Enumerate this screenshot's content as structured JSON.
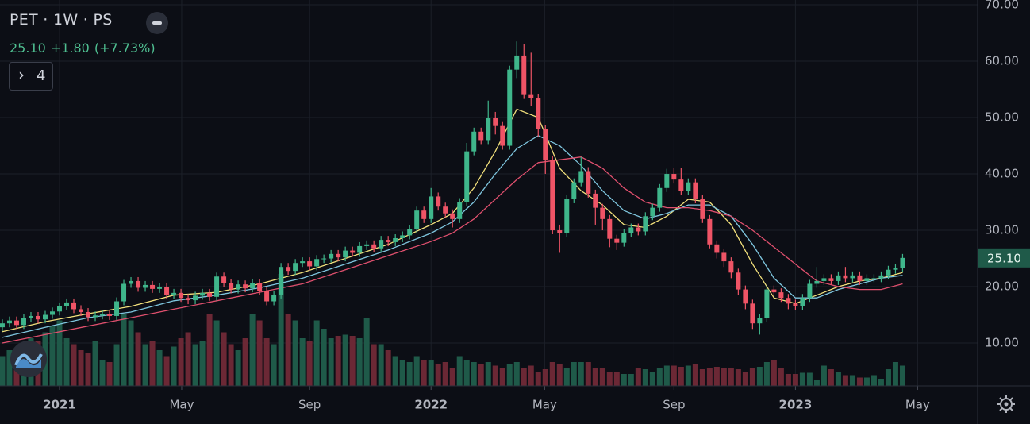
{
  "chart_data": {
    "type": "candlestick",
    "title": "PET · 1W · PS",
    "price": "25.10",
    "change": "+1.80",
    "change_percent": "(+7.73%)",
    "indicator_count": "4",
    "last_price_label": "25.10",
    "up_color": "#3fb68b",
    "down_color": "#ef5466",
    "volume_up_color": "#1f5a49",
    "volume_down_color": "#6b2835",
    "ylim": [
      2.4,
      70.85
    ],
    "yticks": [
      {
        "value": 10,
        "label": "10.00"
      },
      {
        "value": 20,
        "label": "20.00"
      },
      {
        "value": 30,
        "label": "30.00"
      },
      {
        "value": 40,
        "label": "40.00"
      },
      {
        "value": 50,
        "label": "50.00"
      },
      {
        "value": 60,
        "label": "60.00"
      },
      {
        "value": 70,
        "label": "70.00"
      }
    ],
    "xlim": [
      -0.33,
      136.5
    ],
    "xticks": [
      {
        "value": 8,
        "label": "2021"
      },
      {
        "value": 25.1,
        "label": "May"
      },
      {
        "value": 43,
        "label": "Sep"
      },
      {
        "value": 60,
        "label": "2022"
      },
      {
        "value": 75.9,
        "label": "May"
      },
      {
        "value": 94,
        "label": "Sep"
      },
      {
        "value": 111,
        "label": "2023"
      },
      {
        "value": 128.1,
        "label": "May"
      }
    ],
    "vlim": [
      0,
      100
    ],
    "grid": true,
    "open": [
      12.8,
      13.5,
      14.0,
      13.2,
      14.5,
      14.8,
      14.2,
      15.0,
      15.6,
      16.5,
      17.2,
      16.0,
      15.5,
      14.6,
      14.9,
      15.2,
      14.8,
      17.4,
      20.5,
      21.0,
      19.8,
      20.3,
      19.6,
      19.9,
      18.5,
      18.9,
      18.0,
      17.6,
      18.4,
      18.9,
      18.2,
      21.8,
      20.6,
      19.5,
      20.4,
      19.7,
      20.6,
      19.3,
      17.4,
      18.6,
      23.5,
      22.8,
      24.2,
      24.5,
      23.6,
      24.9,
      25.0,
      25.8,
      25.2,
      26.4,
      26.0,
      27.2,
      27.5,
      26.8,
      28.3,
      27.9,
      28.6,
      29.1,
      30.2,
      33.5,
      32.0,
      36.0,
      34.2,
      33.0,
      32.0,
      35.0,
      44.0,
      47.5,
      46.0,
      50.0,
      48.5,
      45.0,
      58.5,
      61.0,
      54.0,
      53.5,
      48.0,
      42.5,
      30.0,
      29.5,
      35.5,
      38.5,
      40.5,
      36.5,
      34.0,
      32.0,
      28.5,
      27.8,
      29.5,
      30.5,
      29.8,
      32.5,
      34.0,
      37.5,
      40.0,
      39.0,
      37.0,
      38.5,
      35.5,
      32.0,
      27.5,
      26.0,
      24.5,
      22.5,
      19.5,
      17.0,
      13.5,
      14.5,
      19.5,
      19.0,
      18.0,
      17.0,
      16.5,
      18.0,
      20.5,
      21.0,
      21.5,
      21.0,
      22.0,
      21.5,
      22.0,
      21.0,
      21.5,
      21.5,
      22.0,
      23.0,
      23.3
    ],
    "high": [
      14.2,
      14.7,
      14.7,
      15.2,
      15.5,
      15.5,
      15.7,
      16.3,
      17.2,
      17.9,
      17.9,
      16.7,
      16.2,
      15.6,
      15.9,
      15.9,
      18.1,
      21.2,
      21.7,
      21.7,
      21.0,
      21.0,
      20.6,
      20.6,
      19.6,
      19.6,
      18.7,
      19.1,
      19.6,
      19.6,
      22.5,
      22.5,
      21.3,
      21.1,
      21.1,
      21.3,
      21.3,
      20.0,
      19.3,
      24.2,
      24.2,
      24.9,
      25.2,
      25.2,
      25.6,
      25.7,
      26.5,
      26.5,
      27.1,
      27.1,
      27.9,
      28.2,
      28.2,
      29.0,
      29.0,
      29.3,
      29.8,
      30.9,
      34.2,
      34.2,
      37.5,
      36.7,
      34.9,
      33.7,
      35.7,
      45.5,
      48.2,
      48.2,
      53.0,
      51.0,
      49.2,
      59.2,
      63.5,
      63.0,
      61.5,
      54.2,
      48.7,
      43.2,
      31.0,
      36.2,
      39.2,
      43.0,
      41.2,
      37.2,
      34.7,
      32.7,
      29.2,
      30.2,
      31.2,
      31.2,
      33.2,
      34.7,
      38.2,
      40.9,
      41.0,
      41.0,
      39.2,
      39.2,
      36.2,
      32.7,
      28.2,
      26.7,
      25.2,
      23.2,
      20.2,
      17.7,
      15.2,
      20.2,
      20.2,
      19.7,
      18.7,
      17.7,
      18.7,
      21.2,
      23.5,
      22.2,
      22.2,
      22.7,
      23.5,
      22.7,
      22.7,
      22.2,
      22.2,
      22.7,
      23.7,
      24.0,
      25.8
    ],
    "low": [
      12.1,
      12.8,
      12.5,
      12.5,
      13.8,
      13.5,
      13.5,
      14.3,
      14.9,
      15.8,
      15.3,
      14.8,
      13.9,
      13.9,
      14.2,
      14.1,
      14.1,
      16.7,
      19.8,
      19.1,
      19.1,
      18.9,
      18.9,
      17.8,
      17.8,
      17.3,
      16.9,
      16.9,
      17.7,
      17.5,
      17.5,
      19.9,
      18.8,
      18.8,
      19.0,
      19.0,
      18.6,
      16.7,
      16.7,
      17.9,
      22.1,
      22.1,
      23.5,
      22.9,
      22.9,
      24.2,
      24.3,
      24.5,
      24.5,
      25.3,
      25.3,
      26.5,
      26.1,
      26.1,
      27.2,
      27.2,
      27.9,
      28.4,
      29.5,
      31.3,
      31.3,
      33.5,
      32.3,
      30.5,
      31.3,
      34.3,
      43.3,
      45.3,
      45.3,
      47.0,
      44.3,
      44.3,
      57.0,
      53.3,
      52.0,
      46.5,
      40.0,
      29.3,
      26.0,
      28.8,
      34.8,
      37.8,
      35.8,
      31.0,
      30.0,
      27.0,
      26.5,
      27.1,
      28.8,
      29.1,
      29.1,
      31.8,
      33.3,
      36.8,
      38.3,
      36.3,
      36.3,
      34.8,
      31.3,
      26.8,
      25.0,
      23.5,
      21.5,
      18.5,
      16.0,
      12.5,
      11.5,
      13.8,
      18.3,
      17.3,
      16.0,
      15.8,
      15.8,
      17.3,
      19.8,
      20.3,
      20.3,
      20.3,
      20.8,
      20.8,
      20.3,
      20.3,
      20.8,
      20.8,
      21.3,
      22.3,
      22.6
    ],
    "close": [
      13.5,
      14.0,
      13.2,
      14.5,
      14.8,
      14.2,
      15.0,
      15.6,
      16.5,
      17.2,
      16.0,
      15.5,
      14.6,
      14.9,
      15.2,
      14.8,
      17.4,
      20.5,
      21.0,
      19.8,
      20.3,
      19.6,
      19.9,
      18.5,
      18.9,
      18.0,
      17.6,
      18.4,
      18.9,
      18.2,
      21.8,
      20.6,
      19.5,
      20.4,
      19.7,
      20.6,
      19.3,
      17.4,
      18.6,
      23.5,
      22.8,
      24.2,
      24.5,
      23.6,
      24.9,
      25.0,
      25.8,
      25.2,
      26.4,
      26.0,
      27.2,
      27.5,
      26.8,
      28.3,
      27.9,
      28.6,
      29.1,
      30.2,
      33.5,
      32.0,
      36.0,
      34.2,
      33.0,
      32.0,
      35.0,
      44.0,
      47.5,
      46.0,
      50.0,
      48.5,
      45.0,
      58.5,
      61.0,
      54.0,
      53.5,
      48.0,
      42.5,
      30.0,
      29.5,
      35.5,
      38.5,
      40.5,
      36.5,
      34.0,
      32.0,
      28.5,
      27.8,
      29.5,
      30.5,
      29.8,
      32.5,
      34.0,
      37.5,
      40.0,
      39.0,
      37.0,
      38.5,
      35.5,
      32.0,
      27.5,
      26.0,
      24.5,
      22.5,
      19.5,
      17.0,
      13.5,
      14.5,
      19.5,
      19.0,
      18.0,
      17.0,
      16.5,
      18.0,
      20.5,
      21.0,
      21.5,
      21.0,
      22.0,
      21.5,
      22.0,
      21.0,
      21.5,
      21.5,
      22.0,
      23.0,
      23.3,
      25.1
    ],
    "volume": [
      25,
      30,
      28,
      35,
      40,
      38,
      45,
      50,
      55,
      40,
      35,
      30,
      28,
      38,
      22,
      20,
      35,
      60,
      55,
      45,
      35,
      38,
      30,
      25,
      33,
      40,
      45,
      35,
      38,
      60,
      55,
      45,
      35,
      30,
      40,
      60,
      55,
      40,
      35,
      94,
      60,
      55,
      40,
      38,
      55,
      48,
      40,
      42,
      43,
      42,
      40,
      57,
      35,
      35,
      30,
      25,
      22,
      20,
      25,
      22,
      22,
      18,
      20,
      15,
      25,
      22,
      20,
      18,
      20,
      17,
      15,
      18,
      20,
      15,
      17,
      12,
      14,
      20,
      18,
      15,
      20,
      20,
      20,
      15,
      15,
      12,
      12,
      10,
      10,
      15,
      14,
      12,
      15,
      17,
      17,
      16,
      17,
      18,
      14,
      15,
      16,
      15,
      15,
      14,
      12,
      15,
      16,
      20,
      22,
      15,
      10,
      10,
      11,
      11,
      5,
      17,
      14,
      12,
      9,
      9,
      7,
      7,
      9,
      6,
      14,
      20,
      17
    ],
    "series": [
      {
        "color": "#f3e17c",
        "x": [
          0,
          6,
          12,
          18,
          24,
          30,
          36,
          42,
          48,
          54,
          60,
          63,
          66,
          69,
          72,
          75,
          78,
          81,
          84,
          87,
          90,
          93,
          96,
          99,
          102,
          105,
          108,
          111,
          114,
          117,
          120,
          123,
          126
        ],
        "values": [
          12,
          13.8,
          15.2,
          16.5,
          18.5,
          19.0,
          20.5,
          22.5,
          25.0,
          27.5,
          31,
          33,
          37.5,
          44,
          51.5,
          50,
          41,
          37,
          34.5,
          31,
          30.5,
          32.5,
          35.5,
          35,
          31,
          24,
          18,
          17,
          18.5,
          20,
          21,
          21.5,
          22.5
        ]
      },
      {
        "color": "#7fc6df",
        "x": [
          0,
          6,
          12,
          18,
          24,
          30,
          36,
          42,
          48,
          54,
          60,
          63,
          66,
          69,
          72,
          75,
          78,
          81,
          84,
          87,
          90,
          93,
          96,
          99,
          102,
          105,
          108,
          111,
          114,
          117,
          120,
          123,
          126
        ],
        "values": [
          11,
          12.8,
          14.5,
          15.5,
          17.5,
          18.5,
          19.8,
          21.5,
          24.0,
          26.5,
          29.5,
          31.5,
          35,
          40,
          44.5,
          46.8,
          45,
          41.5,
          37,
          33.5,
          32,
          33,
          34.5,
          34.5,
          32.5,
          27.5,
          21.5,
          18,
          18,
          19.5,
          20.5,
          21.5,
          22
        ]
      },
      {
        "color": "#e0506e",
        "x": [
          0,
          6,
          12,
          18,
          24,
          30,
          36,
          42,
          48,
          54,
          60,
          63,
          66,
          69,
          72,
          75,
          78,
          81,
          84,
          87,
          90,
          93,
          96,
          99,
          102,
          105,
          108,
          111,
          114,
          117,
          120,
          123,
          126
        ],
        "values": [
          10,
          11.5,
          13.0,
          14.5,
          16.0,
          17.5,
          19.0,
          20.5,
          23.0,
          25.5,
          28,
          29.5,
          32,
          35.5,
          39,
          42,
          42.5,
          43,
          41,
          37.5,
          35,
          34,
          34,
          33.5,
          32.5,
          30,
          27,
          24,
          21,
          20,
          19.5,
          19.5,
          20.5
        ]
      }
    ]
  }
}
